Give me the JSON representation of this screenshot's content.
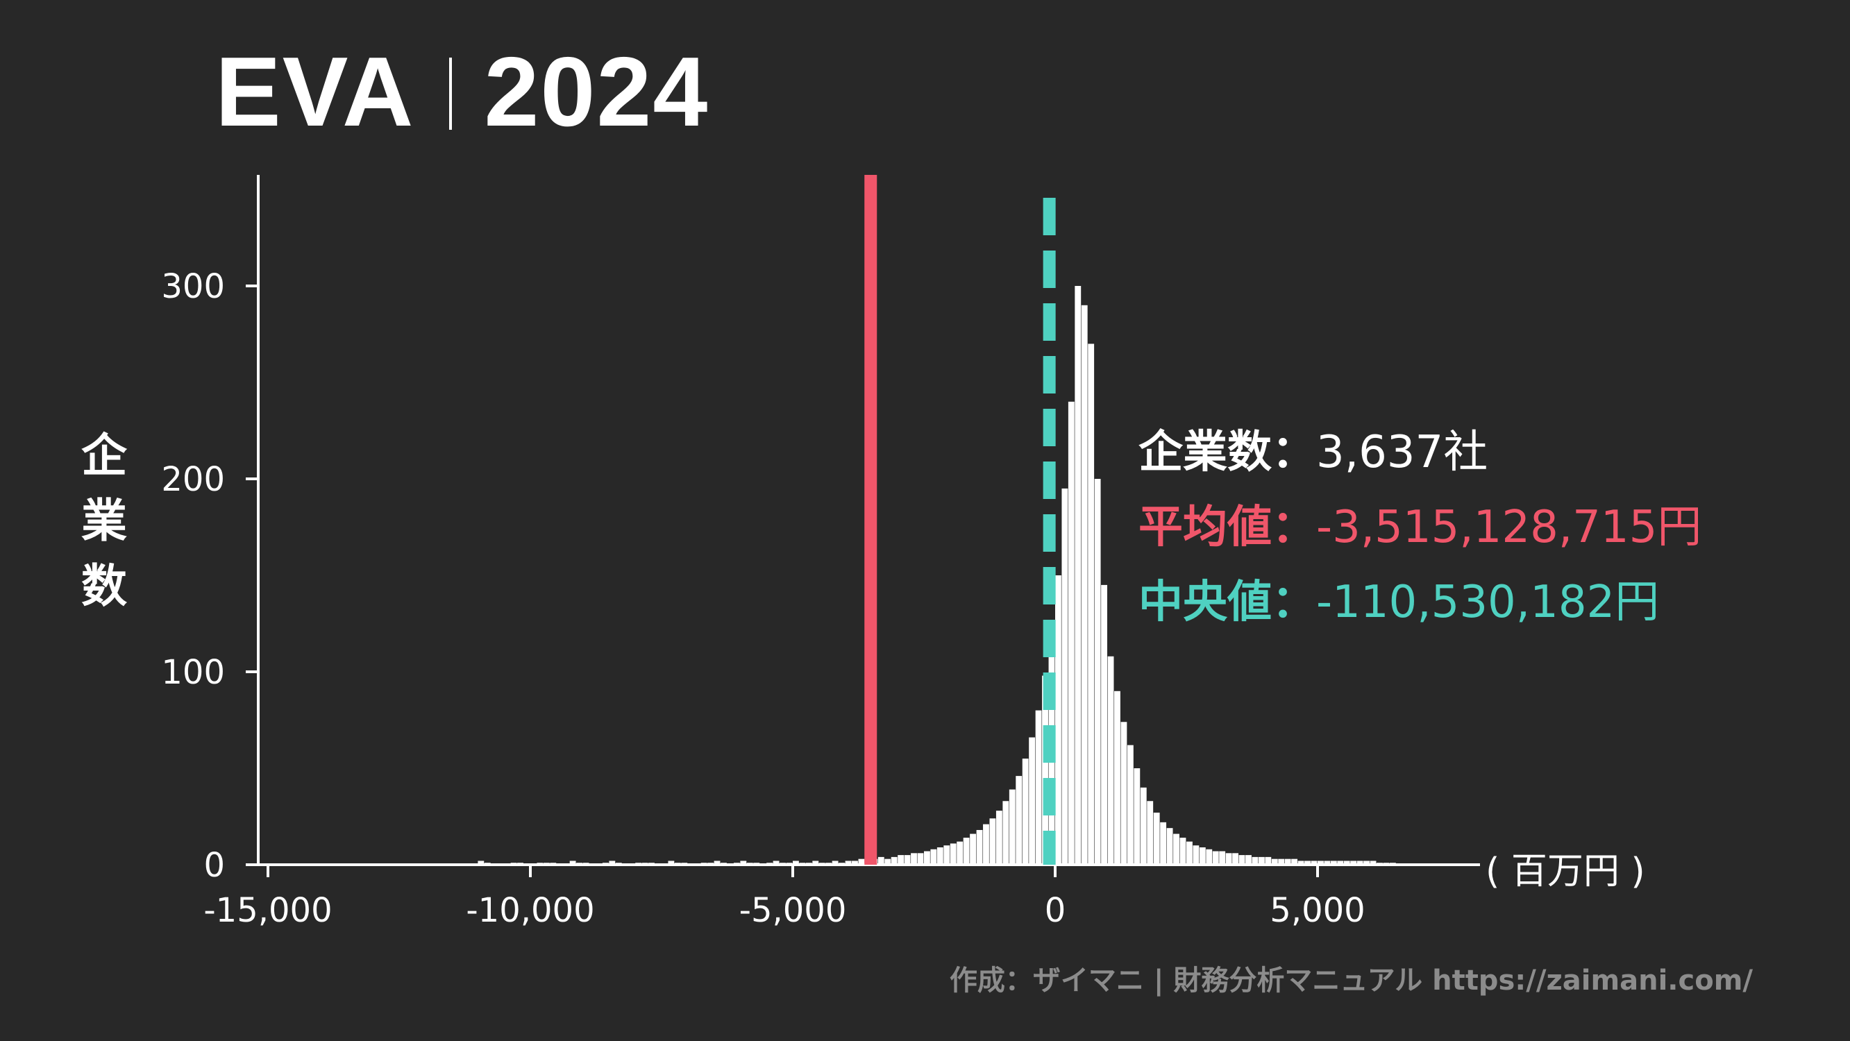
{
  "title": {
    "metric": "EVA",
    "year": "2024"
  },
  "ylabel": "企業数",
  "unit_label": "( 百万円 )",
  "stats": {
    "count_label": "企業数：",
    "count_value": "3,637社",
    "mean_label": "平均値：",
    "mean_value": "-3,515,128,715円",
    "median_label": "中央値：",
    "median_value": "-110,530,182円"
  },
  "footer": "作成：ザイマニ | 財務分析マニュアル https://zaimani.com/",
  "colors": {
    "background": "#282828",
    "bars": "#ffffff",
    "mean_line": "#f0566a",
    "median_line": "#4fd1c1",
    "footer": "#8c8c8c"
  },
  "chart_data": {
    "type": "bar",
    "xlabel": "( 百万円 )",
    "ylabel": "企業数",
    "xlim": [
      -15200,
      8000
    ],
    "ylim": [
      0,
      355
    ],
    "xticks": [
      -15000,
      -10000,
      -5000,
      0,
      5000
    ],
    "xtick_labels": [
      "-15,000",
      "-10,000",
      "-5,000",
      "0",
      "5,000"
    ],
    "yticks": [
      0,
      100,
      200,
      300
    ],
    "ytick_labels": [
      "0",
      "100",
      "200",
      "300"
    ],
    "bin_width": 125,
    "bin_start": -15000,
    "values": [
      0,
      0,
      0,
      0,
      0,
      0,
      0,
      0,
      0,
      0,
      0,
      0,
      0,
      0,
      0,
      0,
      0,
      0,
      0,
      0,
      0,
      0,
      0,
      0,
      0,
      0,
      0,
      0,
      0,
      0,
      0,
      0,
      2,
      1,
      0,
      0,
      0,
      1,
      1,
      0,
      0,
      1,
      1,
      1,
      0,
      0,
      2,
      1,
      1,
      0,
      0,
      1,
      2,
      1,
      0,
      0,
      1,
      1,
      1,
      0,
      0,
      2,
      1,
      1,
      0,
      0,
      1,
      1,
      2,
      1,
      0,
      1,
      2,
      1,
      1,
      0,
      1,
      2,
      1,
      1,
      2,
      1,
      1,
      2,
      1,
      1,
      2,
      1,
      2,
      2,
      3,
      2,
      3,
      4,
      3,
      4,
      5,
      5,
      6,
      6,
      7,
      8,
      9,
      10,
      11,
      12,
      14,
      16,
      18,
      21,
      24,
      28,
      33,
      39,
      46,
      55,
      66,
      80,
      98,
      120,
      150,
      195,
      240,
      300,
      290,
      270,
      200,
      145,
      108,
      90,
      74,
      62,
      50,
      40,
      33,
      27,
      22,
      19,
      16,
      14,
      12,
      10,
      9,
      8,
      7,
      7,
      6,
      6,
      5,
      5,
      4,
      4,
      4,
      3,
      3,
      3,
      3,
      2,
      2,
      2,
      2,
      2,
      2,
      2,
      2,
      2,
      2,
      2,
      2,
      1,
      1,
      1
    ],
    "mean": -3515.128715,
    "median": -110.530182,
    "count": 3637
  }
}
